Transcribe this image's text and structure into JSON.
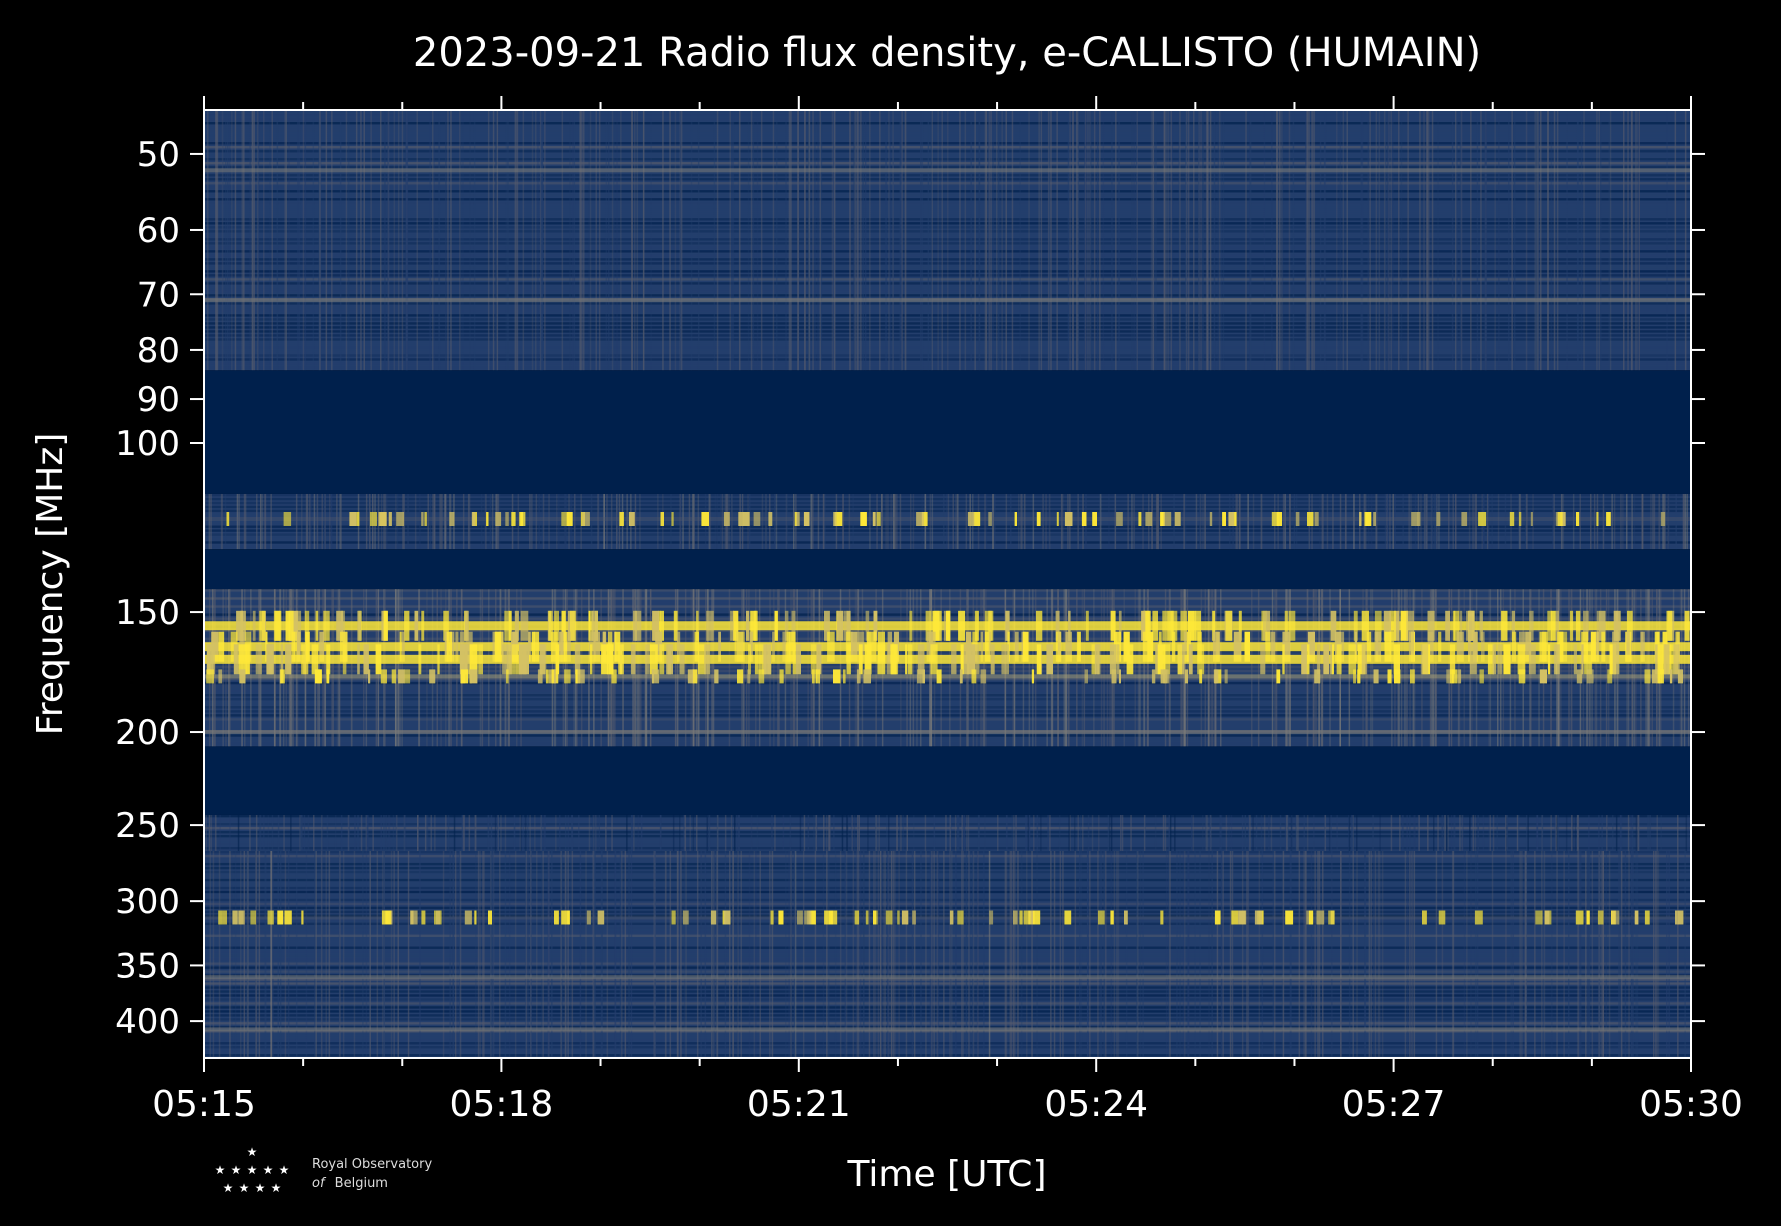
{
  "chart_data": {
    "type": "heatmap",
    "title": "2023-09-21 Radio flux density, e-CALLISTO (HUMAIN)",
    "xlabel": "Time [UTC]",
    "ylabel": "Frequency [MHz]",
    "x_ticks": [
      "05:15",
      "05:18",
      "05:21",
      "05:24",
      "05:27",
      "05:30"
    ],
    "x_range": [
      "05:15",
      "05:30"
    ],
    "y_ticks": [
      50,
      60,
      70,
      80,
      90,
      100,
      150,
      200,
      250,
      300,
      350,
      400
    ],
    "y_range_mhz": [
      45,
      437
    ],
    "y_scale": "log",
    "y_inverted": true,
    "colormap": [
      "#00204c",
      "#233e6c",
      "#575c6d",
      "#7c7b78",
      "#a69d75",
      "#d3c164",
      "#fee838"
    ],
    "background_color": "#000000",
    "bands": [
      {
        "from": 45,
        "to": 84,
        "level": "moderate"
      },
      {
        "from": 84,
        "to": 113,
        "level": "masked"
      },
      {
        "from": 113,
        "to": 129,
        "level": "bursty"
      },
      {
        "from": 129,
        "to": 142,
        "level": "masked"
      },
      {
        "from": 142,
        "to": 207,
        "level": "strong"
      },
      {
        "from": 207,
        "to": 244,
        "level": "masked"
      },
      {
        "from": 244,
        "to": 266,
        "level": "weak"
      },
      {
        "from": 266,
        "to": 437,
        "level": "moderate"
      }
    ],
    "emission_lines_mhz": [
      {
        "f": 52,
        "level": "weak"
      },
      {
        "f": 71,
        "level": "weak"
      },
      {
        "f": 120,
        "level": "bursty"
      },
      {
        "f": 155,
        "level": "saturated"
      },
      {
        "f": 163,
        "level": "saturated"
      },
      {
        "f": 168,
        "level": "saturated"
      },
      {
        "f": 175,
        "level": "strong"
      },
      {
        "f": 200,
        "level": "weak"
      },
      {
        "f": 312,
        "level": "bursty"
      },
      {
        "f": 360,
        "level": "weak"
      },
      {
        "f": 408,
        "level": "weak"
      }
    ]
  },
  "logo": {
    "line1": "Royal Observatory",
    "line2_italic": "of",
    "line2": "Belgium"
  }
}
